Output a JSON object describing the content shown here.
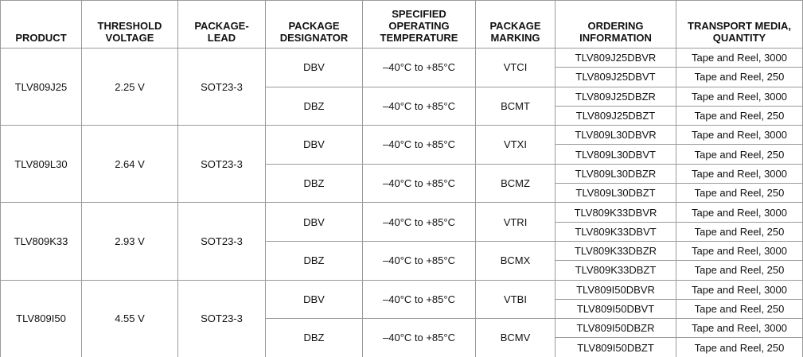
{
  "header": [
    "PRODUCT",
    [
      "THRESHOLD",
      "VOLTAGE"
    ],
    [
      "PACKAGE-",
      "LEAD"
    ],
    [
      "PACKAGE",
      "DESIGNATOR"
    ],
    [
      "SPECIFIED",
      "OPERATING",
      "TEMPERATURE"
    ],
    [
      "PACKAGE",
      "MARKING"
    ],
    [
      "ORDERING",
      "INFORMATION"
    ],
    [
      "TRANSPORT MEDIA,",
      "QUANTITY"
    ]
  ],
  "products": [
    {
      "product": "TLV809J25",
      "threshold": "2.25 V",
      "package_lead": "SOT23-3",
      "packages": [
        {
          "designator": "DBV",
          "temperature": "–40°C to +85°C",
          "marking": "VTCI",
          "orders": [
            {
              "ordering": "TLV809J25DBVR",
              "transport": "Tape and Reel, 3000"
            },
            {
              "ordering": "TLV809J25DBVT",
              "transport": "Tape and Reel, 250"
            }
          ]
        },
        {
          "designator": "DBZ",
          "temperature": "–40°C to +85°C",
          "marking": "BCMT",
          "orders": [
            {
              "ordering": "TLV809J25DBZR",
              "transport": "Tape and Reel, 3000"
            },
            {
              "ordering": "TLV809J25DBZT",
              "transport": "Tape and Reel, 250"
            }
          ]
        }
      ]
    },
    {
      "product": "TLV809L30",
      "threshold": "2.64 V",
      "package_lead": "SOT23-3",
      "packages": [
        {
          "designator": "DBV",
          "temperature": "–40°C to +85°C",
          "marking": "VTXI",
          "orders": [
            {
              "ordering": "TLV809L30DBVR",
              "transport": "Tape and Reel, 3000"
            },
            {
              "ordering": "TLV809L30DBVT",
              "transport": "Tape and Reel, 250"
            }
          ]
        },
        {
          "designator": "DBZ",
          "temperature": "–40°C to +85°C",
          "marking": "BCMZ",
          "orders": [
            {
              "ordering": "TLV809L30DBZR",
              "transport": "Tape and Reel, 3000"
            },
            {
              "ordering": "TLV809L30DBZT",
              "transport": "Tape and Reel, 250"
            }
          ]
        }
      ]
    },
    {
      "product": "TLV809K33",
      "threshold": "2.93 V",
      "package_lead": "SOT23-3",
      "packages": [
        {
          "designator": "DBV",
          "temperature": "–40°C to +85°C",
          "marking": "VTRI",
          "orders": [
            {
              "ordering": "TLV809K33DBVR",
              "transport": "Tape and Reel, 3000"
            },
            {
              "ordering": "TLV809K33DBVT",
              "transport": "Tape and Reel, 250"
            }
          ]
        },
        {
          "designator": "DBZ",
          "temperature": "–40°C to +85°C",
          "marking": "BCMX",
          "orders": [
            {
              "ordering": "TLV809K33DBZR",
              "transport": "Tape and Reel, 3000"
            },
            {
              "ordering": "TLV809K33DBZT",
              "transport": "Tape and Reel, 250"
            }
          ]
        }
      ]
    },
    {
      "product": "TLV809I50",
      "threshold": "4.55 V",
      "package_lead": "SOT23-3",
      "packages": [
        {
          "designator": "DBV",
          "temperature": "–40°C to +85°C",
          "marking": "VTBI",
          "orders": [
            {
              "ordering": "TLV809I50DBVR",
              "transport": "Tape and Reel, 3000"
            },
            {
              "ordering": "TLV809I50DBVT",
              "transport": "Tape and Reel, 250"
            }
          ]
        },
        {
          "designator": "DBZ",
          "temperature": "–40°C to +85°C",
          "marking": "BCMV",
          "orders": [
            {
              "ordering": "TLV809I50DBZR",
              "transport": "Tape and Reel, 3000"
            },
            {
              "ordering": "TLV809I50DBZT",
              "transport": "Tape and Reel, 250"
            }
          ]
        }
      ]
    }
  ]
}
